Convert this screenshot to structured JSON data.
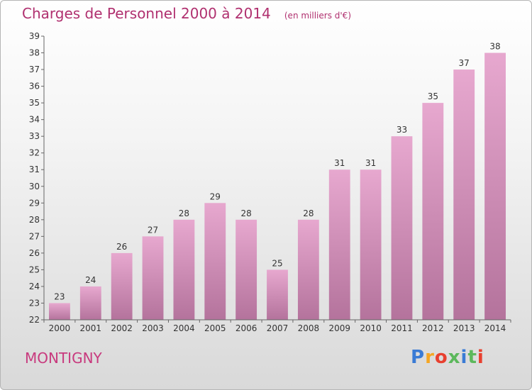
{
  "header": {
    "title": "Charges de Personnel 2000 à 2014",
    "unit": "(en milliers d'€)"
  },
  "footer": {
    "commune": "MONTIGNY",
    "brand": "Proxiti",
    "brand_colors": [
      "#3a7bd5",
      "#f5a623",
      "#e8402f",
      "#5cb85c",
      "#3a7bd5",
      "#5cb85c",
      "#e8402f"
    ]
  },
  "colors": {
    "bar_top": "#e7a8cf",
    "bar_bottom": "#b4739c",
    "title": "#b0306f",
    "commune": "#c83a7e"
  },
  "chart_data": {
    "type": "bar",
    "categories": [
      "2000",
      "2001",
      "2002",
      "2003",
      "2004",
      "2005",
      "2006",
      "2007",
      "2008",
      "2009",
      "2010",
      "2011",
      "2012",
      "2013",
      "2014"
    ],
    "values": [
      23,
      24,
      26,
      27,
      28,
      29,
      28,
      25,
      28,
      31,
      31,
      33,
      35,
      37,
      38
    ],
    "ylim": [
      22,
      39
    ],
    "yticks": [
      22,
      23,
      24,
      25,
      26,
      27,
      28,
      29,
      30,
      31,
      32,
      33,
      34,
      35,
      36,
      37,
      38,
      39
    ],
    "grid": false,
    "legend": "none",
    "title": "Charges de Personnel 2000 à 2014",
    "xlabel": "",
    "ylabel": ""
  }
}
